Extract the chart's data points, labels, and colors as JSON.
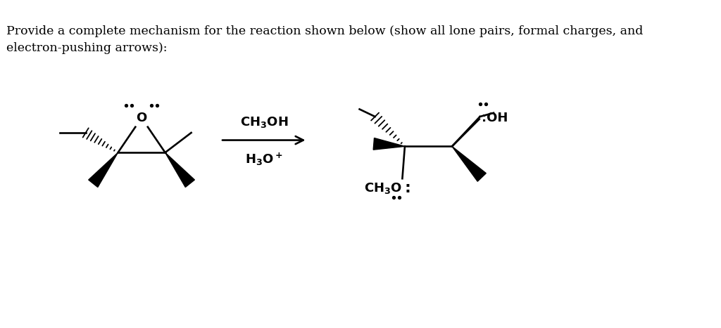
{
  "bg_color": "#ffffff",
  "figsize": [
    10.24,
    4.67
  ],
  "dpi": 100,
  "header_line1": "Provide a complete mechanism for the reaction shown below (show all lone pairs, formal charges, and",
  "header_line2": "electron-pushing arrows):",
  "header_fontsize": 12.5,
  "reagent1": "CH₃OH",
  "reagent2": "H₃O⁺"
}
